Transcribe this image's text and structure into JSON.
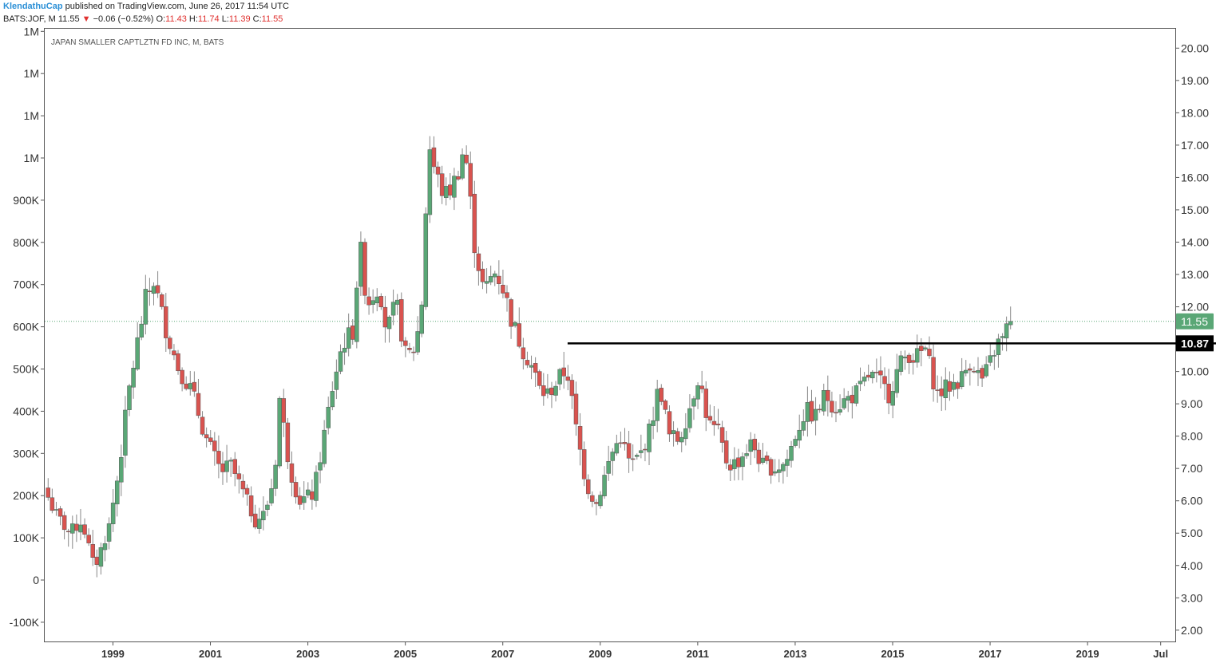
{
  "header": {
    "author": "KlendathuCap",
    "published": "published on TradingView.com, June 26, 2017 11:54 UTC",
    "symbol": "BATS:JOF, M",
    "last": "11.55",
    "change_arrow": "▼",
    "change": "−0.06 (−0.52%)",
    "o_label": "O:",
    "o_value": "11.43",
    "h_label": "H:",
    "h_value": "11.74",
    "l_label": "L:",
    "l_value": "11.39",
    "c_label": "C:",
    "c_value": "11.55"
  },
  "chart_data": {
    "type": "candlestick",
    "title": "JAPAN SMALLER CAPTLZTN FD INC, M, BATS",
    "up_color": "#5aa776",
    "down_color": "#d9534f",
    "price_axis": {
      "range": [
        1.65,
        20.6
      ],
      "ticks": [
        "20.00",
        "19.00",
        "18.00",
        "17.00",
        "16.00",
        "15.00",
        "14.00",
        "13.00",
        "12.00",
        "11.00",
        "10.00",
        "9.00",
        "8.00",
        "7.00",
        "6.00",
        "5.00",
        "4.00",
        "3.00",
        "2.00"
      ]
    },
    "volume_axis": {
      "ticks": [
        "1M",
        "1M",
        "1M",
        "1M",
        "900K",
        "800K",
        "700K",
        "600K",
        "500K",
        "400K",
        "300K",
        "200K",
        "100K",
        "0",
        "-100K"
      ]
    },
    "time_axis": {
      "start": 1997.6,
      "end": 2020.8,
      "labels": [
        "1999",
        "2001",
        "2003",
        "2005",
        "2007",
        "2009",
        "2011",
        "2013",
        "2015",
        "2017",
        "2019",
        "Jul"
      ],
      "label_times": [
        1999.0,
        2001.0,
        2003.0,
        2005.0,
        2007.0,
        2009.0,
        2011.0,
        2013.0,
        2015.0,
        2017.0,
        2019.0,
        2020.5
      ]
    },
    "last_price": {
      "value": 11.55,
      "label": "11.55",
      "color": "#5aa776"
    },
    "resistance_line": {
      "value": 10.87,
      "label": "10.87",
      "from": 2008.33,
      "to": 2020.8
    },
    "anchors": [
      [
        1997.67,
        6.4
      ],
      [
        1997.9,
        5.6
      ],
      [
        1998.2,
        5.0
      ],
      [
        1998.45,
        5.4
      ],
      [
        1998.7,
        3.9
      ],
      [
        1999.0,
        5.2
      ],
      [
        1999.2,
        6.9
      ],
      [
        1999.4,
        9.3
      ],
      [
        1999.55,
        10.6
      ],
      [
        1999.75,
        12.2
      ],
      [
        1999.92,
        12.8
      ],
      [
        2000.1,
        11.7
      ],
      [
        2000.4,
        10.2
      ],
      [
        2000.7,
        9.4
      ],
      [
        2001.0,
        7.9
      ],
      [
        2001.3,
        6.9
      ],
      [
        2001.5,
        7.1
      ],
      [
        2001.8,
        6.1
      ],
      [
        2002.0,
        5.4
      ],
      [
        2002.2,
        5.6
      ],
      [
        2002.4,
        6.8
      ],
      [
        2002.5,
        9.2
      ],
      [
        2002.7,
        7.1
      ],
      [
        2002.9,
        6.0
      ],
      [
        2003.2,
        6.2
      ],
      [
        2003.4,
        7.9
      ],
      [
        2003.6,
        9.6
      ],
      [
        2003.8,
        10.9
      ],
      [
        2004.0,
        11.2
      ],
      [
        2004.15,
        13.9
      ],
      [
        2004.3,
        12.1
      ],
      [
        2004.55,
        12.7
      ],
      [
        2004.7,
        11.2
      ],
      [
        2004.9,
        12.1
      ],
      [
        2005.1,
        10.4
      ],
      [
        2005.3,
        10.8
      ],
      [
        2005.45,
        12.5
      ],
      [
        2005.55,
        17.2
      ],
      [
        2005.7,
        16.1
      ],
      [
        2005.9,
        15.4
      ],
      [
        2006.1,
        15.9
      ],
      [
        2006.3,
        17.0
      ],
      [
        2006.5,
        14.0
      ],
      [
        2006.7,
        12.4
      ],
      [
        2006.9,
        13.1
      ],
      [
        2007.05,
        12.8
      ],
      [
        2007.3,
        11.4
      ],
      [
        2007.5,
        10.7
      ],
      [
        2007.7,
        10.1
      ],
      [
        2007.85,
        9.4
      ],
      [
        2008.0,
        9.3
      ],
      [
        2008.2,
        9.7
      ],
      [
        2008.4,
        10.1
      ],
      [
        2008.6,
        8.1
      ],
      [
        2008.8,
        6.5
      ],
      [
        2009.0,
        5.9
      ],
      [
        2009.1,
        6.4
      ],
      [
        2009.3,
        7.4
      ],
      [
        2009.5,
        8.0
      ],
      [
        2009.7,
        7.1
      ],
      [
        2009.9,
        7.4
      ],
      [
        2010.1,
        8.2
      ],
      [
        2010.3,
        9.6
      ],
      [
        2010.5,
        8.0
      ],
      [
        2010.7,
        7.9
      ],
      [
        2010.9,
        8.8
      ],
      [
        2011.1,
        9.9
      ],
      [
        2011.3,
        8.4
      ],
      [
        2011.5,
        8.1
      ],
      [
        2011.7,
        7.1
      ],
      [
        2011.9,
        7.2
      ],
      [
        2012.2,
        7.8
      ],
      [
        2012.4,
        7.1
      ],
      [
        2012.7,
        7.0
      ],
      [
        2012.9,
        7.2
      ],
      [
        2013.1,
        8.1
      ],
      [
        2013.3,
        8.8
      ],
      [
        2013.5,
        8.6
      ],
      [
        2013.7,
        9.3
      ],
      [
        2013.9,
        8.9
      ],
      [
        2014.1,
        9.1
      ],
      [
        2014.4,
        9.4
      ],
      [
        2014.6,
        9.9
      ],
      [
        2014.8,
        9.7
      ],
      [
        2015.0,
        9.3
      ],
      [
        2015.2,
        10.1
      ],
      [
        2015.4,
        10.6
      ],
      [
        2015.55,
        10.4
      ],
      [
        2015.75,
        10.7
      ],
      [
        2016.0,
        9.3
      ],
      [
        2016.2,
        9.5
      ],
      [
        2016.5,
        9.8
      ],
      [
        2016.7,
        10.4
      ],
      [
        2016.9,
        9.7
      ],
      [
        2017.05,
        10.1
      ],
      [
        2017.2,
        10.8
      ],
      [
        2017.35,
        11.0
      ],
      [
        2017.48,
        11.55
      ]
    ]
  }
}
